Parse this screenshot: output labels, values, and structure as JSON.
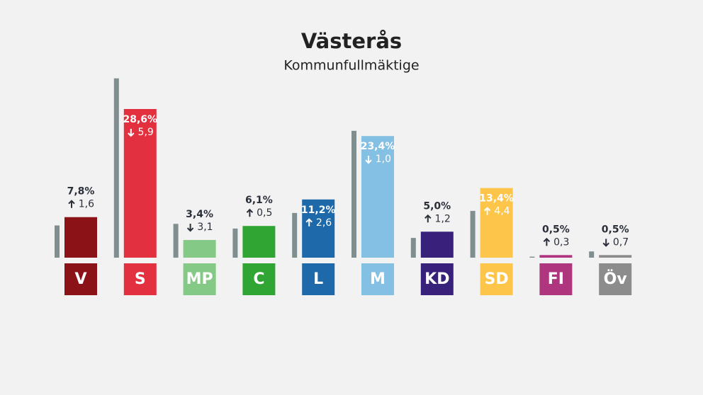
{
  "chart_data": {
    "type": "bar",
    "title": "Västerås",
    "subtitle": "Kommunfullmäktige",
    "categories": [
      "V",
      "S",
      "MP",
      "C",
      "L",
      "M",
      "KD",
      "SD",
      "FI",
      "Öv"
    ],
    "values": [
      7.8,
      28.6,
      3.4,
      6.1,
      11.2,
      23.4,
      5.0,
      13.4,
      0.5,
      0.5
    ],
    "value_labels": [
      "7,8%",
      "28,6%",
      "3,4%",
      "6,1%",
      "11,2%",
      "23,4%",
      "5,0%",
      "13,4%",
      "0,5%",
      "0,5%"
    ],
    "changes": [
      1.6,
      -5.9,
      -3.1,
      0.5,
      2.6,
      -1.0,
      1.2,
      4.4,
      0.3,
      -0.7
    ],
    "change_labels": [
      "1,6",
      "5,9",
      "3,1",
      "0,5",
      "2,6",
      "1,0",
      "1,2",
      "4,4",
      "0,3",
      "0,7"
    ],
    "previous_values": [
      6.2,
      34.5,
      6.5,
      5.6,
      8.6,
      24.4,
      3.8,
      9.0,
      0.2,
      1.2
    ],
    "colors": [
      "#8b1317",
      "#e3303f",
      "#84c985",
      "#31a533",
      "#1e69aa",
      "#84bfe4",
      "#38217a",
      "#fdc54a",
      "#b0357f",
      "#8c8c8c"
    ],
    "previous_color": "#7f8e8e",
    "ylim": [
      0,
      35
    ]
  }
}
